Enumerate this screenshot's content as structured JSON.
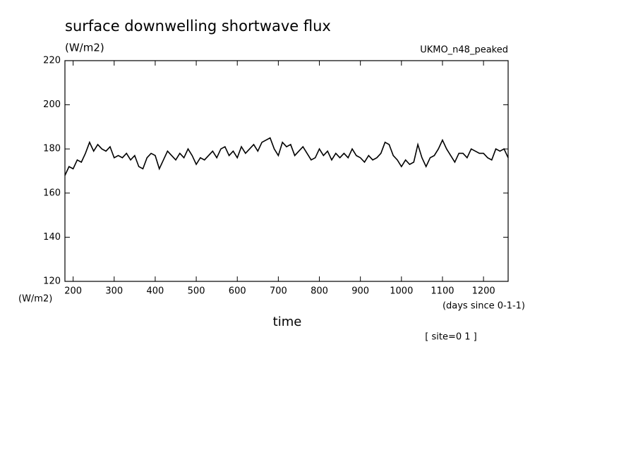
{
  "chart_data": {
    "type": "line",
    "title": "surface downwelling shortwave flux",
    "units_label": "(W/m2)",
    "model_label": "UKMO_n48_peaked",
    "y_axis_unit": "(W/m2)",
    "x_axis_unit": "(days since 0-1-1)",
    "x_label": "time",
    "annotation": "[ site=0 1 ]",
    "color": "#000000",
    "xlim": [
      180,
      1260
    ],
    "ylim": [
      120,
      220
    ],
    "xticks": [
      200,
      300,
      400,
      500,
      600,
      700,
      800,
      900,
      1000,
      1100,
      1200
    ],
    "yticks": [
      120,
      140,
      160,
      180,
      200,
      220
    ],
    "x": [
      180,
      190,
      200,
      210,
      220,
      230,
      240,
      250,
      260,
      270,
      280,
      290,
      300,
      310,
      320,
      330,
      340,
      350,
      360,
      370,
      380,
      390,
      400,
      410,
      420,
      430,
      440,
      450,
      460,
      470,
      480,
      490,
      500,
      510,
      520,
      530,
      540,
      550,
      560,
      570,
      580,
      590,
      600,
      610,
      620,
      630,
      640,
      650,
      660,
      670,
      680,
      690,
      700,
      710,
      720,
      730,
      740,
      750,
      760,
      770,
      780,
      790,
      800,
      810,
      820,
      830,
      840,
      850,
      860,
      870,
      880,
      890,
      900,
      910,
      920,
      930,
      940,
      950,
      960,
      970,
      980,
      990,
      1000,
      1010,
      1020,
      1030,
      1040,
      1050,
      1060,
      1070,
      1080,
      1090,
      1100,
      1110,
      1120,
      1130,
      1140,
      1150,
      1160,
      1170,
      1180,
      1190,
      1200,
      1210,
      1220,
      1230,
      1240,
      1250,
      1260
    ],
    "values": [
      168,
      172,
      171,
      175,
      174,
      178,
      183,
      179,
      182,
      180,
      179,
      181,
      176,
      177,
      176,
      178,
      175,
      177,
      172,
      171,
      176,
      178,
      177,
      171,
      175,
      179,
      177,
      175,
      178,
      176,
      180,
      177,
      173,
      176,
      175,
      177,
      179,
      176,
      180,
      181,
      177,
      179,
      176,
      181,
      178,
      180,
      182,
      179,
      183,
      184,
      185,
      180,
      177,
      183,
      181,
      182,
      177,
      179,
      181,
      178,
      175,
      176,
      180,
      177,
      179,
      175,
      178,
      176,
      178,
      176,
      180,
      177,
      176,
      174,
      177,
      175,
      176,
      178,
      183,
      182,
      177,
      175,
      172,
      175,
      173,
      174,
      182,
      176,
      172,
      176,
      177,
      180,
      184,
      180,
      177,
      174,
      178,
      178,
      176,
      180,
      179,
      178,
      178,
      176,
      175,
      180,
      179,
      180,
      176
    ]
  }
}
